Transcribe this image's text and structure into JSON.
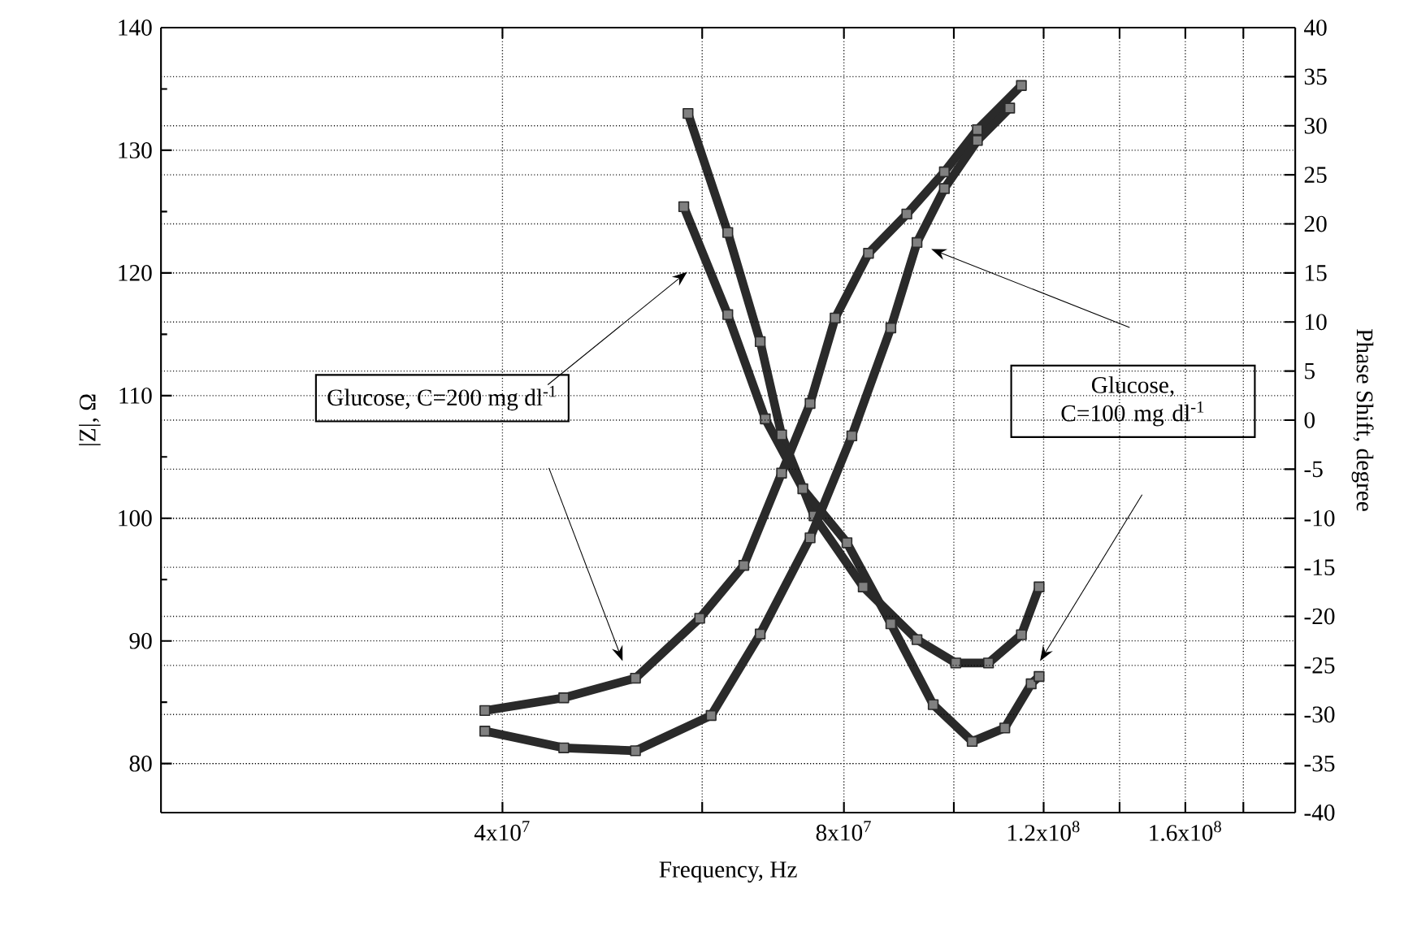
{
  "chart_data": {
    "type": "line",
    "xlabel": "Frequency, Hz",
    "ylabel": "|Z|, Ω",
    "y2label": "Phase Shift, degree",
    "log": "x",
    "grid": true,
    "marker": "square",
    "line_style": "solid",
    "xlim": [
      20000000,
      200000000
    ],
    "xticks": [
      {
        "value": 40000000,
        "label": "4x10$^{7}$"
      },
      {
        "value": 60000000,
        "label": null
      },
      {
        "value": 80000000,
        "label": "8x10$^{7}$"
      },
      {
        "value": 100000000,
        "label": null
      },
      {
        "value": 120000000,
        "label": "1.2x10$^{8}$"
      },
      {
        "value": 140000000,
        "label": null
      },
      {
        "value": 160000000,
        "label": "1.6x10$^{8}$"
      },
      {
        "value": 180000000,
        "label": null
      }
    ],
    "ylim": [
      76,
      140
    ],
    "yticks": [
      80,
      90,
      100,
      110,
      120,
      130,
      140
    ],
    "y2lim": [
      -40,
      40
    ],
    "y2ticks": [
      -40,
      -35,
      -30,
      -25,
      -20,
      -15,
      -10,
      -5,
      0,
      5,
      10,
      15,
      20,
      25,
      30,
      35,
      40
    ],
    "series": [
      {
        "color": "#2a2a2a",
        "x": [
          58300000,
          63200000,
          67500000,
          70500000,
          75300000,
          83200000,
          92800000,
          100400000,
          107300000,
          114700000,
          118900000
        ],
        "values": [
          133.0,
          123.3,
          114.4,
          106.8,
          100.2,
          94.4,
          90.1,
          88.2,
          88.2,
          90.5,
          94.4
        ]
      },
      {
        "color": "#2a2a2a",
        "x": [
          57800000,
          63200000,
          68200000,
          73600000,
          80500000,
          88000000,
          95900000,
          103800000,
          110900000,
          117000000,
          118900000
        ],
        "values": [
          125.4,
          116.6,
          108.1,
          102.4,
          98.0,
          91.4,
          84.8,
          81.8,
          82.9,
          86.5,
          87.1
        ]
      },
      {
        "color": "#2a2a2a",
        "axis": "y2",
        "x": [
          38600000,
          45300000,
          52400000,
          59700000,
          65300000,
          70500000,
          74700000,
          78600000,
          84100000,
          90900000,
          98100000,
          104900000,
          114700000
        ],
        "values": [
          -29.6,
          -28.3,
          -26.3,
          -20.2,
          -14.8,
          -5.4,
          1.7,
          10.4,
          17.0,
          21.0,
          25.3,
          29.6,
          34.1
        ]
      },
      {
        "color": "#2a2a2a",
        "axis": "y2",
        "x": [
          38600000,
          45300000,
          52400000,
          61100000,
          67500000,
          74700000,
          81300000,
          88000000,
          92800000,
          98100000,
          104900000,
          112000000
        ],
        "values": [
          -31.7,
          -33.4,
          -33.7,
          -30.1,
          -21.8,
          -12.0,
          -1.6,
          9.4,
          18.1,
          23.6,
          28.5,
          31.8
        ]
      }
    ],
    "annotations": [
      "Glucose, C=200 mg dl$^{-1}$",
      "Glucose, C=100 mg dl$^{-1}$"
    ]
  }
}
